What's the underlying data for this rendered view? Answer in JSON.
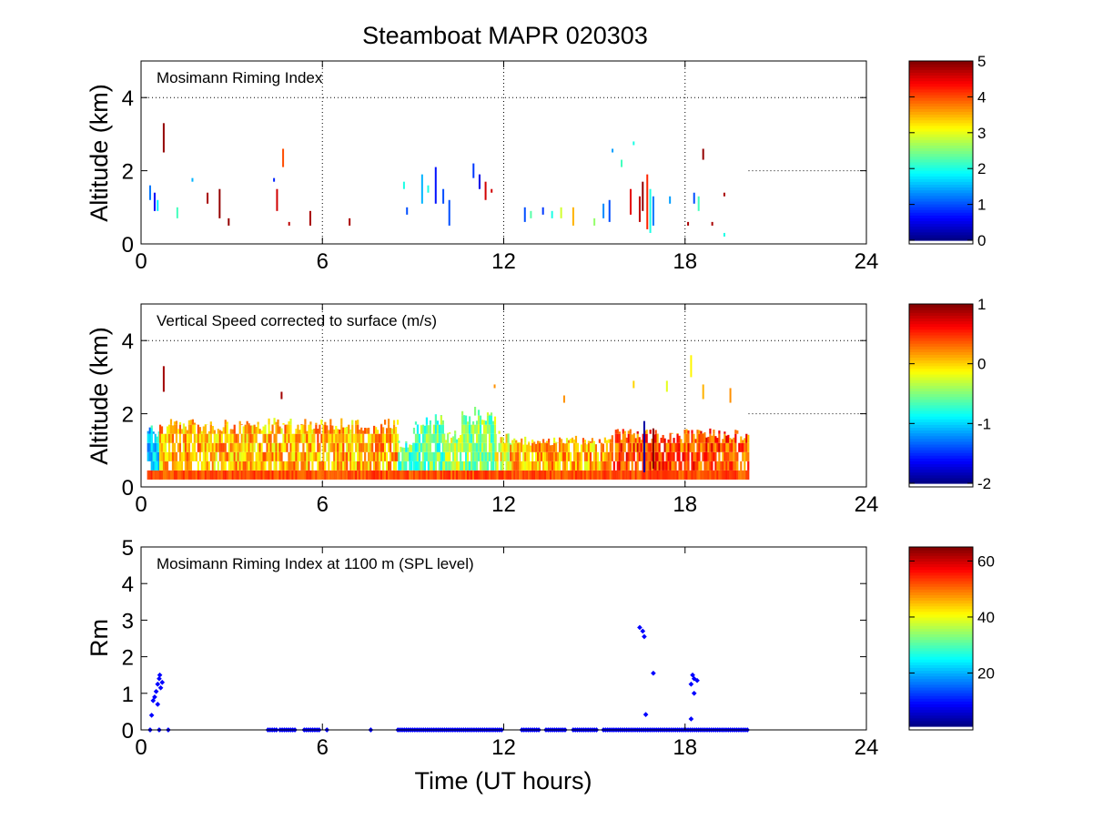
{
  "title": "Steamboat MAPR 020303",
  "colors": {
    "marker": "#0000ff",
    "colormap": "jet"
  },
  "chart_data": [
    {
      "type": "heatmap",
      "label": "Mosimann Riming Index",
      "ylabel": "Altitude (km)",
      "xlim": [
        0,
        24
      ],
      "ylim": [
        0,
        5
      ],
      "x_ticks": [
        "0",
        "6",
        "12",
        "18",
        "24"
      ],
      "y_ticks": [
        "0",
        "2",
        "4"
      ],
      "colorbar": {
        "range": [
          0,
          5
        ],
        "ticks": [
          "0",
          "1",
          "2",
          "3",
          "4",
          "5"
        ]
      },
      "grid": "dotted at x=6,12,18,24 and y=4; y=2 beyond ~20 h",
      "cells": [
        [
          0.3,
          1.6,
          1.2,
          1.2
        ],
        [
          0.45,
          1.4,
          0.9,
          0.6
        ],
        [
          0.55,
          1.2,
          0.9,
          1.8
        ],
        [
          0.75,
          3.3,
          2.5,
          4.9
        ],
        [
          1.2,
          1.0,
          0.7,
          2.2
        ],
        [
          1.7,
          1.8,
          1.7,
          1.5
        ],
        [
          2.2,
          1.4,
          1.1,
          4.8
        ],
        [
          2.6,
          1.5,
          0.7,
          4.9
        ],
        [
          2.9,
          0.7,
          0.5,
          4.9
        ],
        [
          4.4,
          1.8,
          1.7,
          0.8
        ],
        [
          4.5,
          1.5,
          0.9,
          4.6
        ],
        [
          4.7,
          2.6,
          2.1,
          4.0
        ],
        [
          4.9,
          0.6,
          0.5,
          4.7
        ],
        [
          5.6,
          0.9,
          0.5,
          4.8
        ],
        [
          6.9,
          0.7,
          0.5,
          4.8
        ],
        [
          8.7,
          1.7,
          1.5,
          2.0
        ],
        [
          8.8,
          1.0,
          0.8,
          1.0
        ],
        [
          9.3,
          1.9,
          1.1,
          1.5
        ],
        [
          9.5,
          1.6,
          1.4,
          2.0
        ],
        [
          9.75,
          2.1,
          1.1,
          0.7
        ],
        [
          10.0,
          1.5,
          1.1,
          1.0
        ],
        [
          10.2,
          1.2,
          0.5,
          1.0
        ],
        [
          11.0,
          2.2,
          1.8,
          0.9
        ],
        [
          11.2,
          1.9,
          1.5,
          0.5
        ],
        [
          11.4,
          1.7,
          1.2,
          4.6
        ],
        [
          11.6,
          1.5,
          1.4,
          4.6
        ],
        [
          12.7,
          1.0,
          0.6,
          1.0
        ],
        [
          12.9,
          0.9,
          0.7,
          2.3
        ],
        [
          13.3,
          1.0,
          0.8,
          0.9
        ],
        [
          13.6,
          0.9,
          0.7,
          2.0
        ],
        [
          13.9,
          1.0,
          0.7,
          2.9
        ],
        [
          14.3,
          1.0,
          0.5,
          3.5
        ],
        [
          15.0,
          0.7,
          0.5,
          2.6
        ],
        [
          15.3,
          1.1,
          0.7,
          1.3
        ],
        [
          15.5,
          1.2,
          0.6,
          1.0
        ],
        [
          15.6,
          2.6,
          2.5,
          1.4
        ],
        [
          15.9,
          2.3,
          2.1,
          2.2
        ],
        [
          16.2,
          1.5,
          0.8,
          4.5
        ],
        [
          16.3,
          2.8,
          2.7,
          2.0
        ],
        [
          16.5,
          1.3,
          0.6,
          4.7
        ],
        [
          16.6,
          1.7,
          0.9,
          4.9
        ],
        [
          16.75,
          1.9,
          0.4,
          4.2
        ],
        [
          16.85,
          1.5,
          0.3,
          2.0
        ],
        [
          16.95,
          1.3,
          0.5,
          1.2
        ],
        [
          17.5,
          1.3,
          1.1,
          1.4
        ],
        [
          18.1,
          0.6,
          0.5,
          4.8
        ],
        [
          18.3,
          1.4,
          1.1,
          1.0
        ],
        [
          18.45,
          1.3,
          0.9,
          2.2
        ],
        [
          18.6,
          2.6,
          2.3,
          4.9
        ],
        [
          18.9,
          0.6,
          0.5,
          4.8
        ],
        [
          19.3,
          1.4,
          1.3,
          4.8
        ],
        [
          19.3,
          0.3,
          0.2,
          2.0
        ]
      ]
    },
    {
      "type": "heatmap",
      "label": "Vertical Speed corrected to surface (m/s)",
      "ylabel": "Altitude (km)",
      "xlim": [
        0,
        24
      ],
      "ylim": [
        0,
        5
      ],
      "x_ticks": [
        "0",
        "6",
        "12",
        "18",
        "24"
      ],
      "y_ticks": [
        "0",
        "2",
        "4"
      ],
      "colorbar": {
        "range": [
          -2,
          1
        ],
        "ticks": [
          "-2",
          "-1",
          "0",
          "1"
        ]
      },
      "grid": "dotted at x=6,12,18,24 and y=4; y=2 beyond ~20 h",
      "data_extent_hours": [
        0.2,
        20.1
      ],
      "segments": [
        {
          "x": [
            0.2,
            0.6
          ],
          "top": 1.7,
          "v": -1.0
        },
        {
          "x": [
            0.6,
            8.5
          ],
          "top": 1.9,
          "v": 0.1
        },
        {
          "x": [
            8.5,
            9.0
          ],
          "top": 1.3,
          "v": -0.6
        },
        {
          "x": [
            9.0,
            10.0
          ],
          "top": 2.0,
          "v": -0.6
        },
        {
          "x": [
            10.0,
            10.6
          ],
          "top": 1.6,
          "v": -0.4
        },
        {
          "x": [
            10.6,
            11.7
          ],
          "top": 2.2,
          "v": -0.5
        },
        {
          "x": [
            11.7,
            12.2
          ],
          "top": 1.6,
          "v": -0.2
        },
        {
          "x": [
            12.2,
            15.5
          ],
          "top": 1.4,
          "v": 0.1
        },
        {
          "x": [
            15.5,
            20.1
          ],
          "top": 1.6,
          "v": 0.4
        }
      ],
      "spots": [
        [
          0.75,
          3.3,
          2.6,
          0.9
        ],
        [
          4.65,
          2.6,
          2.4,
          0.9
        ],
        [
          11.7,
          2.8,
          2.7,
          0.2
        ],
        [
          14.0,
          2.5,
          2.3,
          0.2
        ],
        [
          16.3,
          2.9,
          2.7,
          0.0
        ],
        [
          17.4,
          2.9,
          2.6,
          -0.2
        ],
        [
          18.2,
          3.6,
          3.0,
          -0.1
        ],
        [
          18.6,
          2.8,
          2.4,
          0.1
        ],
        [
          16.65,
          1.8,
          0.4,
          -1.9
        ],
        [
          16.95,
          1.6,
          0.5,
          1.0
        ],
        [
          19.5,
          2.7,
          2.3,
          0.2
        ],
        [
          0.35,
          1.6,
          1.0,
          -0.9
        ]
      ]
    },
    {
      "type": "scatter",
      "label": "Mosimann Riming Index at 1100 m (SPL level)",
      "xlabel": "Time (UT hours)",
      "ylabel": "Rm",
      "xlim": [
        0,
        24
      ],
      "ylim": [
        0,
        5
      ],
      "x_ticks": [
        "0",
        "6",
        "12",
        "18",
        "24"
      ],
      "y_ticks": [
        "0",
        "1",
        "2",
        "3",
        "4",
        "5"
      ],
      "colorbar": {
        "range": [
          1,
          65
        ],
        "ticks": [
          "20",
          "40",
          "60"
        ]
      },
      "points": [
        [
          0.3,
          0.0
        ],
        [
          0.35,
          0.4
        ],
        [
          0.4,
          0.8
        ],
        [
          0.45,
          0.9
        ],
        [
          0.5,
          1.05
        ],
        [
          0.55,
          1.25
        ],
        [
          0.55,
          0.7
        ],
        [
          0.6,
          1.4
        ],
        [
          0.62,
          1.5
        ],
        [
          0.65,
          1.15
        ],
        [
          0.7,
          1.3
        ],
        [
          0.6,
          0.0
        ],
        [
          0.9,
          0.0
        ],
        [
          16.5,
          2.8
        ],
        [
          16.6,
          2.7
        ],
        [
          16.65,
          2.55
        ],
        [
          16.7,
          0.42
        ],
        [
          16.95,
          1.55
        ],
        [
          18.25,
          1.5
        ],
        [
          18.3,
          1.4
        ],
        [
          18.2,
          1.25
        ],
        [
          18.4,
          1.35
        ],
        [
          18.3,
          1.0
        ],
        [
          18.2,
          0.3
        ]
      ],
      "zero_ranges": [
        [
          4.2,
          4.5
        ],
        [
          4.6,
          5.1
        ],
        [
          5.4,
          5.9
        ],
        [
          6.15,
          6.2
        ],
        [
          7.6,
          7.65
        ],
        [
          8.5,
          12.0
        ],
        [
          12.6,
          13.2
        ],
        [
          13.4,
          14.1
        ],
        [
          14.3,
          15.1
        ],
        [
          15.3,
          20.1
        ]
      ]
    }
  ]
}
